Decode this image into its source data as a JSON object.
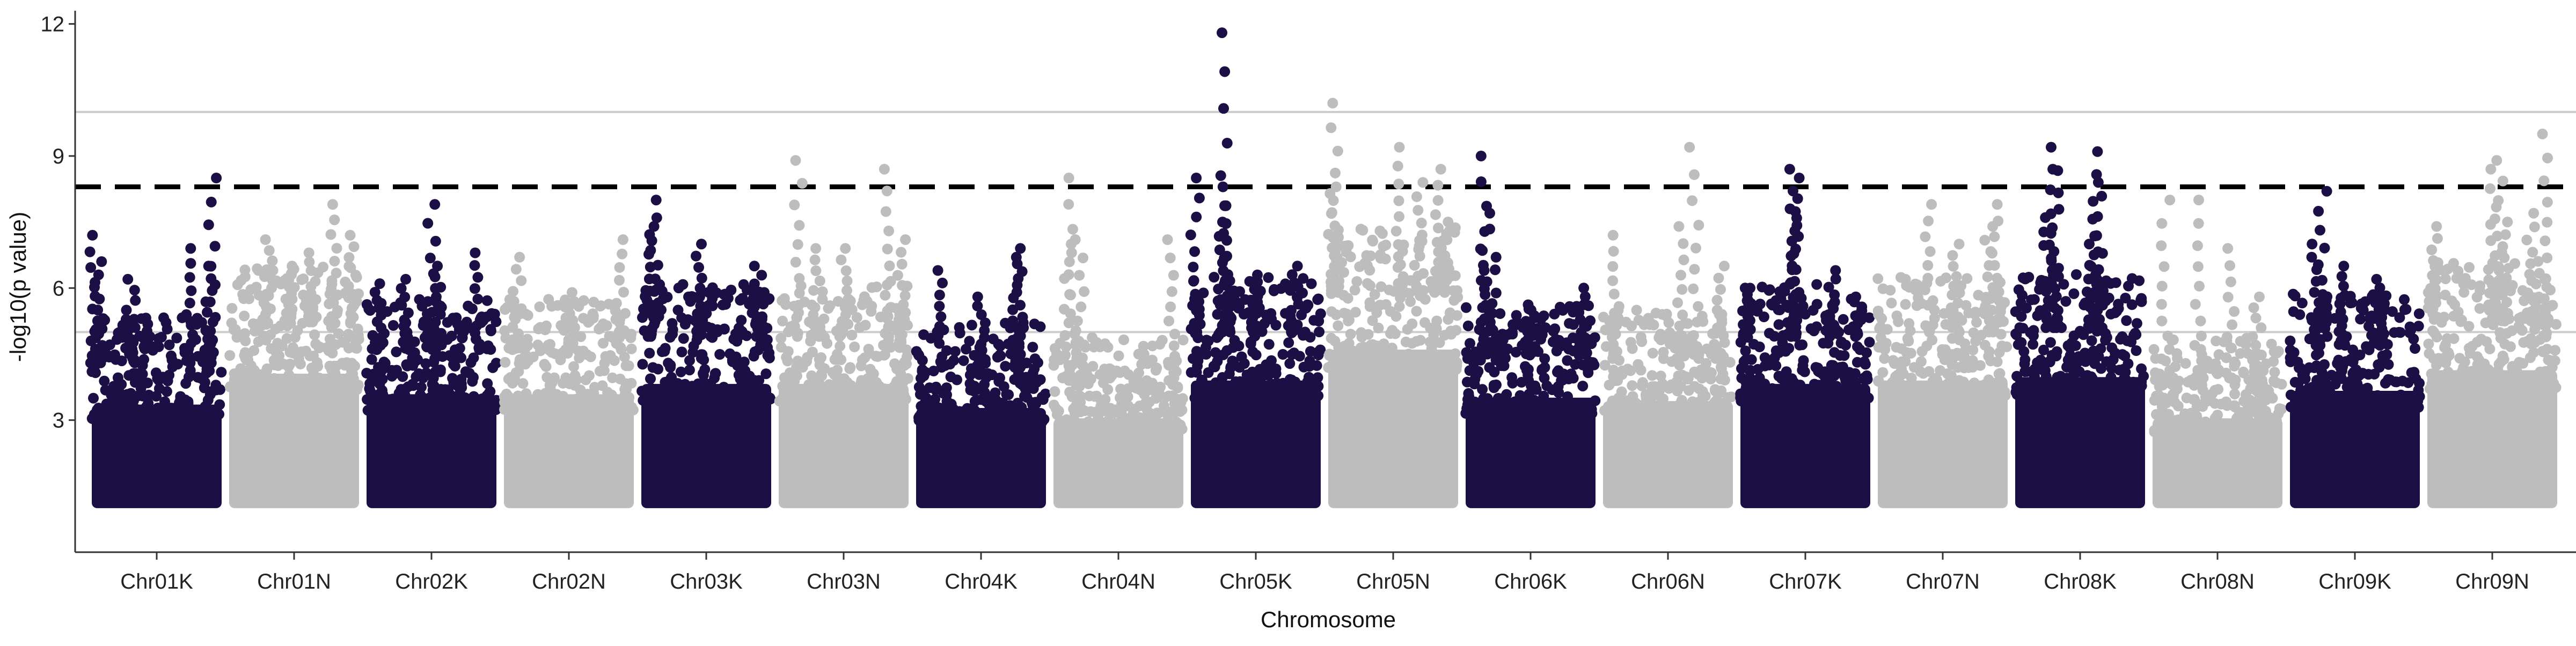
{
  "chart_data": {
    "type": "scatter",
    "subtype": "manhattan",
    "title": "",
    "xlabel": "Chromosome",
    "ylabel": "-log10(p value)",
    "ylim": [
      0,
      12.3
    ],
    "y_ticks": [
      3,
      6,
      9,
      12
    ],
    "grid": false,
    "legend": "none",
    "colors": {
      "dark": "#1c0f45",
      "light": "#bdbdbd",
      "threshold": "#000000",
      "hline": "#cccccc",
      "axis": "#333333"
    },
    "threshold_lines": [
      {
        "y": 8.3,
        "style": "dashed"
      },
      {
        "y": 10.0,
        "style": "solid"
      },
      {
        "y": 5.0,
        "style": "solid"
      }
    ],
    "categories": [
      "Chr01K",
      "Chr01N",
      "Chr02K",
      "Chr02N",
      "Chr03K",
      "Chr03N",
      "Chr04K",
      "Chr04N",
      "Chr05K",
      "Chr05N",
      "Chr06K",
      "Chr06N",
      "Chr07K",
      "Chr07N",
      "Chr08K",
      "Chr08N",
      "Chr09K",
      "Chr09N"
    ],
    "series": [
      {
        "category": "Chr01K",
        "color": "dark",
        "base_max": 4.3,
        "peaks": [
          [
            0.02,
            7.2
          ],
          [
            0.05,
            6.6
          ],
          [
            0.3,
            6.2
          ],
          [
            0.75,
            6.9
          ],
          [
            0.9,
            6.5
          ],
          [
            0.93,
            8.5
          ]
        ]
      },
      {
        "category": "Chr01N",
        "color": "light",
        "base_max": 5.2,
        "peaks": [
          [
            0.3,
            7.1
          ],
          [
            0.45,
            6.5
          ],
          [
            0.8,
            7.9
          ],
          [
            0.95,
            7.2
          ],
          [
            0.6,
            6.8
          ]
        ]
      },
      {
        "category": "Chr02K",
        "color": "dark",
        "base_max": 4.6,
        "peaks": [
          [
            0.5,
            7.9
          ],
          [
            0.55,
            6.5
          ],
          [
            0.85,
            6.8
          ],
          [
            0.3,
            6.2
          ],
          [
            0.1,
            6.1
          ]
        ]
      },
      {
        "category": "Chr02N",
        "color": "light",
        "base_max": 4.6,
        "peaks": [
          [
            0.1,
            6.7
          ],
          [
            0.9,
            7.1
          ],
          [
            0.5,
            5.9
          ]
        ]
      },
      {
        "category": "Chr03K",
        "color": "dark",
        "base_max": 4.9,
        "peaks": [
          [
            0.1,
            8.0
          ],
          [
            0.08,
            7.4
          ],
          [
            0.45,
            7.0
          ],
          [
            0.9,
            6.5
          ]
        ]
      },
      {
        "category": "Chr03N",
        "color": "light",
        "base_max": 4.9,
        "peaks": [
          [
            0.15,
            8.9
          ],
          [
            0.3,
            6.9
          ],
          [
            0.5,
            6.9
          ],
          [
            0.85,
            8.7
          ],
          [
            0.95,
            7.1
          ]
        ]
      },
      {
        "category": "Chr04K",
        "color": "dark",
        "base_max": 4.2,
        "peaks": [
          [
            0.2,
            6.4
          ],
          [
            0.5,
            5.8
          ],
          [
            0.8,
            6.9
          ],
          [
            0.78,
            6.7
          ]
        ]
      },
      {
        "category": "Chr04N",
        "color": "light",
        "base_max": 3.9,
        "peaks": [
          [
            0.1,
            7.0
          ],
          [
            0.15,
            8.5
          ],
          [
            0.2,
            7.1
          ],
          [
            0.9,
            7.1
          ]
        ]
      },
      {
        "category": "Chr05K",
        "color": "dark",
        "base_max": 5.0,
        "peaks": [
          [
            0.03,
            8.5
          ],
          [
            0.25,
            11.8
          ],
          [
            0.28,
            8.3
          ],
          [
            0.25,
            7.5
          ],
          [
            0.5,
            6.3
          ],
          [
            0.8,
            6.5
          ]
        ]
      },
      {
        "category": "Chr05N",
        "color": "light",
        "base_max": 5.9,
        "peaks": [
          [
            0.05,
            8.3
          ],
          [
            0.05,
            10.2
          ],
          [
            0.55,
            9.2
          ],
          [
            0.85,
            8.7
          ],
          [
            0.9,
            7.5
          ],
          [
            0.7,
            8.4
          ]
        ]
      },
      {
        "category": "Chr06K",
        "color": "dark",
        "base_max": 4.5,
        "peaks": [
          [
            0.15,
            9.0
          ],
          [
            0.15,
            7.7
          ],
          [
            0.2,
            6.7
          ],
          [
            0.5,
            5.5
          ],
          [
            0.9,
            6.0
          ]
        ]
      },
      {
        "category": "Chr06N",
        "color": "light",
        "base_max": 4.4,
        "peaks": [
          [
            0.1,
            7.2
          ],
          [
            0.6,
            7.4
          ],
          [
            0.7,
            9.2
          ],
          [
            0.9,
            6.5
          ]
        ]
      },
      {
        "category": "Chr07K",
        "color": "dark",
        "base_max": 4.9,
        "peaks": [
          [
            0.05,
            6.0
          ],
          [
            0.4,
            8.7
          ],
          [
            0.4,
            7.8
          ],
          [
            0.42,
            8.5
          ],
          [
            0.7,
            6.4
          ],
          [
            0.9,
            5.8
          ]
        ]
      },
      {
        "category": "Chr07N",
        "color": "light",
        "base_max": 5.0,
        "peaks": [
          [
            0.4,
            7.9
          ],
          [
            0.6,
            7.0
          ],
          [
            0.85,
            7.4
          ],
          [
            0.9,
            7.9
          ]
        ]
      },
      {
        "category": "Chr08K",
        "color": "dark",
        "base_max": 5.1,
        "peaks": [
          [
            0.3,
            9.2
          ],
          [
            0.3,
            8.7
          ],
          [
            0.25,
            7.6
          ],
          [
            0.65,
            9.1
          ],
          [
            0.62,
            8.4
          ],
          [
            0.6,
            7.0
          ]
        ]
      },
      {
        "category": "Chr08N",
        "color": "light",
        "base_max": 3.9,
        "peaks": [
          [
            0.1,
            8.0
          ],
          [
            0.35,
            8.0
          ],
          [
            0.6,
            6.9
          ],
          [
            0.8,
            5.8
          ]
        ]
      },
      {
        "category": "Chr09K",
        "color": "dark",
        "base_max": 4.7,
        "peaks": [
          [
            0.25,
            8.2
          ],
          [
            0.2,
            7.0
          ],
          [
            0.4,
            6.5
          ],
          [
            0.7,
            6.2
          ]
        ]
      },
      {
        "category": "Chr09N",
        "color": "light",
        "base_max": 5.3,
        "peaks": [
          [
            0.05,
            7.4
          ],
          [
            0.55,
            8.9
          ],
          [
            0.5,
            8.7
          ],
          [
            0.8,
            7.7
          ],
          [
            0.9,
            9.5
          ],
          [
            0.6,
            7.5
          ]
        ]
      }
    ]
  }
}
